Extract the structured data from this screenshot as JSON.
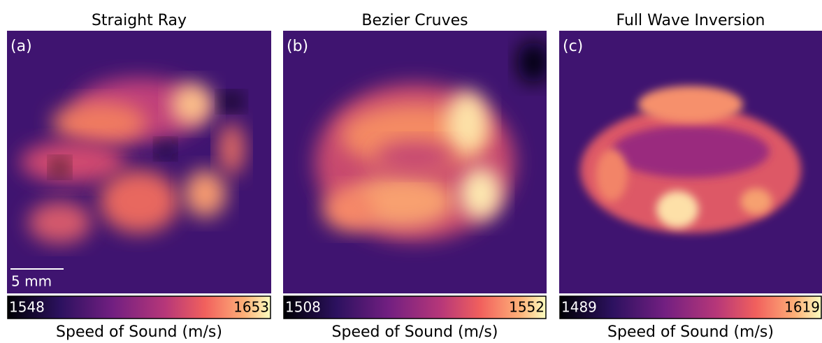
{
  "panels": [
    {
      "title": "Straight Ray",
      "label": "(a)",
      "scale_bar": "5 mm",
      "colorbar": {
        "min": 1548,
        "max": 1653,
        "label": "Speed of Sound (m/s)"
      }
    },
    {
      "title": "Bezier Cruves",
      "label": "(b)",
      "colorbar": {
        "min": 1508,
        "max": 1552,
        "label": "Speed of Sound (m/s)"
      }
    },
    {
      "title": "Full Wave Inversion",
      "label": "(c)",
      "colorbar": {
        "min": 1489,
        "max": 1619,
        "label": "Speed of Sound (m/s)"
      }
    }
  ]
}
